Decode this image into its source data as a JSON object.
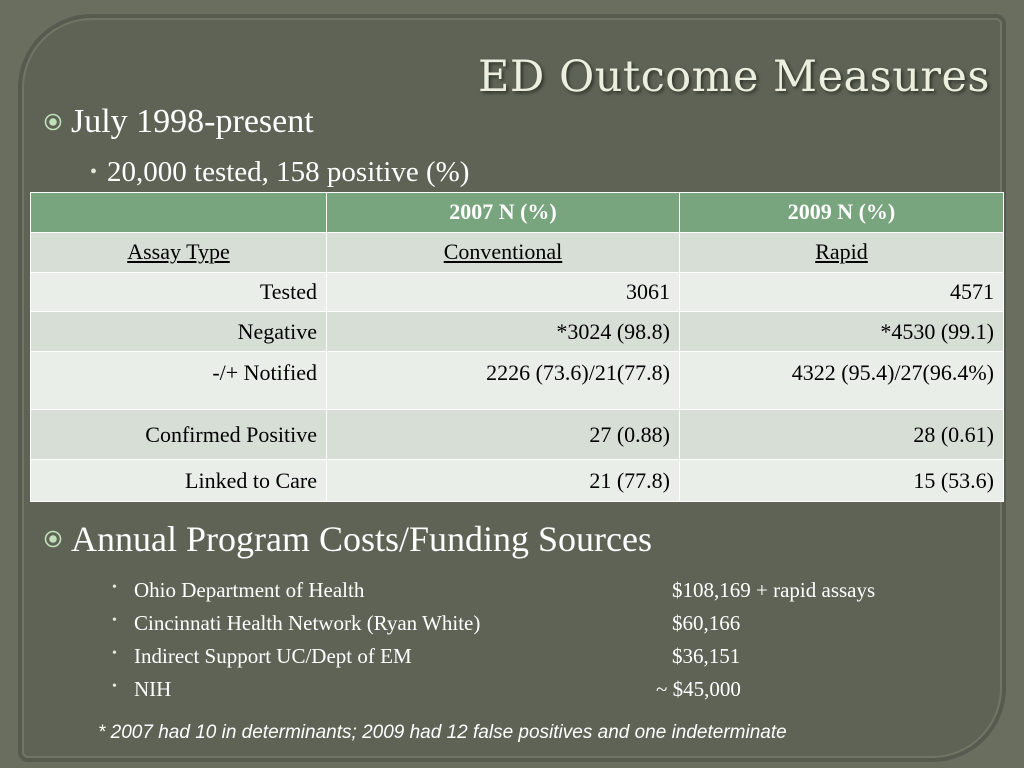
{
  "title": "ED Outcome Measures",
  "bullets": {
    "period": "July 1998-present",
    "tested_summary": "20,000 tested, 158 positive (%)",
    "costs_heading": "Annual Program Costs/Funding Sources"
  },
  "table": {
    "header": [
      "",
      "2007 N (%)",
      "2009 N (%)"
    ],
    "subheader": [
      "Assay Type",
      "Conventional",
      "Rapid"
    ],
    "rows": [
      {
        "label": "Tested",
        "y2007": "3061",
        "y2009": "4571"
      },
      {
        "label": "Negative",
        "y2007": "*3024 (98.8)",
        "y2009": "*4530 (99.1)"
      },
      {
        "label": "-/+ Notified",
        "y2007": "2226 (73.6)/21(77.8)",
        "y2009": "4322 (95.4)/27(96.4%)"
      },
      {
        "label": "Confirmed Positive",
        "y2007": "27 (0.88)",
        "y2009": "28 (0.61)"
      },
      {
        "label": "Linked to Care",
        "y2007": "21 (77.8)",
        "y2009": "15 (53.6)"
      }
    ]
  },
  "funding": [
    {
      "source": "Ohio Department of Health",
      "amount": "$108,169 + rapid assays"
    },
    {
      "source": "Cincinnati Health Network (Ryan White)",
      "amount": "$60,166"
    },
    {
      "source": "Indirect Support UC/Dept of EM",
      "amount": "$36,151"
    },
    {
      "source": "NIH",
      "amount": "~ $45,000"
    }
  ],
  "footnote": "* 2007 had 10 in determinants; 2009 had 12 false positives and one indeterminate",
  "icons": {
    "level1_bullet": "circled-dot-bullet-icon",
    "level2_bullet": "dot-bullet-icon"
  },
  "colors": {
    "background": "#5f6356",
    "table_header": "#78a57e",
    "table_row_light": "#e9eee9",
    "table_row_dark": "#d6ded6",
    "title_text": "#eceede"
  }
}
